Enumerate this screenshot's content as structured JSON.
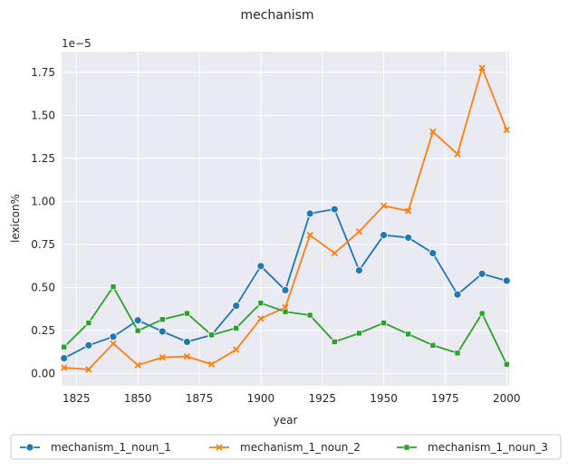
{
  "chart_data": {
    "type": "line",
    "title": "mechanism",
    "xlabel": "year",
    "ylabel": "lexicon%",
    "y_offset_label": "1e−5",
    "xlim": [
      1819,
      2001
    ],
    "ylim": [
      -0.07,
      1.87
    ],
    "x_ticks": [
      1825,
      1850,
      1875,
      1900,
      1925,
      1950,
      1975,
      2000
    ],
    "x_tick_labels": [
      "1825",
      "1850",
      "1875",
      "1900",
      "1925",
      "1950",
      "1975",
      "2000"
    ],
    "y_ticks": [
      0,
      0.25,
      0.5,
      0.75,
      1.0,
      1.25,
      1.5,
      1.75
    ],
    "y_tick_labels": [
      "0.00",
      "0.25",
      "0.50",
      "0.75",
      "1.00",
      "1.25",
      "1.50",
      "1.75"
    ],
    "grid": true,
    "legend_position": "bottom-center",
    "x": [
      1820,
      1830,
      1840,
      1850,
      1860,
      1870,
      1880,
      1890,
      1900,
      1910,
      1920,
      1930,
      1940,
      1950,
      1960,
      1970,
      1980,
      1990,
      2000
    ],
    "series": [
      {
        "name": "mechanism_1_noun_1",
        "color": "#1f77b4",
        "marker": "circle",
        "values": [
          0.09,
          0.165,
          0.215,
          0.31,
          0.245,
          0.185,
          0.225,
          0.395,
          0.625,
          0.485,
          0.93,
          0.955,
          0.6,
          0.805,
          0.79,
          0.7,
          0.46,
          0.58,
          0.54
        ]
      },
      {
        "name": "mechanism_1_noun_2",
        "color": "#ff7f0e",
        "marker": "x",
        "values": [
          0.035,
          0.025,
          0.175,
          0.05,
          0.095,
          0.1,
          0.055,
          0.14,
          0.32,
          0.385,
          0.805,
          0.7,
          0.825,
          0.975,
          0.945,
          1.405,
          1.275,
          1.775,
          1.415
        ]
      },
      {
        "name": "mechanism_1_noun_3",
        "color": "#2ca02c",
        "marker": "square",
        "values": [
          0.155,
          0.295,
          0.505,
          0.25,
          0.315,
          0.35,
          0.225,
          0.265,
          0.41,
          0.36,
          0.34,
          0.185,
          0.235,
          0.295,
          0.23,
          0.165,
          0.12,
          0.35,
          0.055
        ]
      }
    ]
  }
}
